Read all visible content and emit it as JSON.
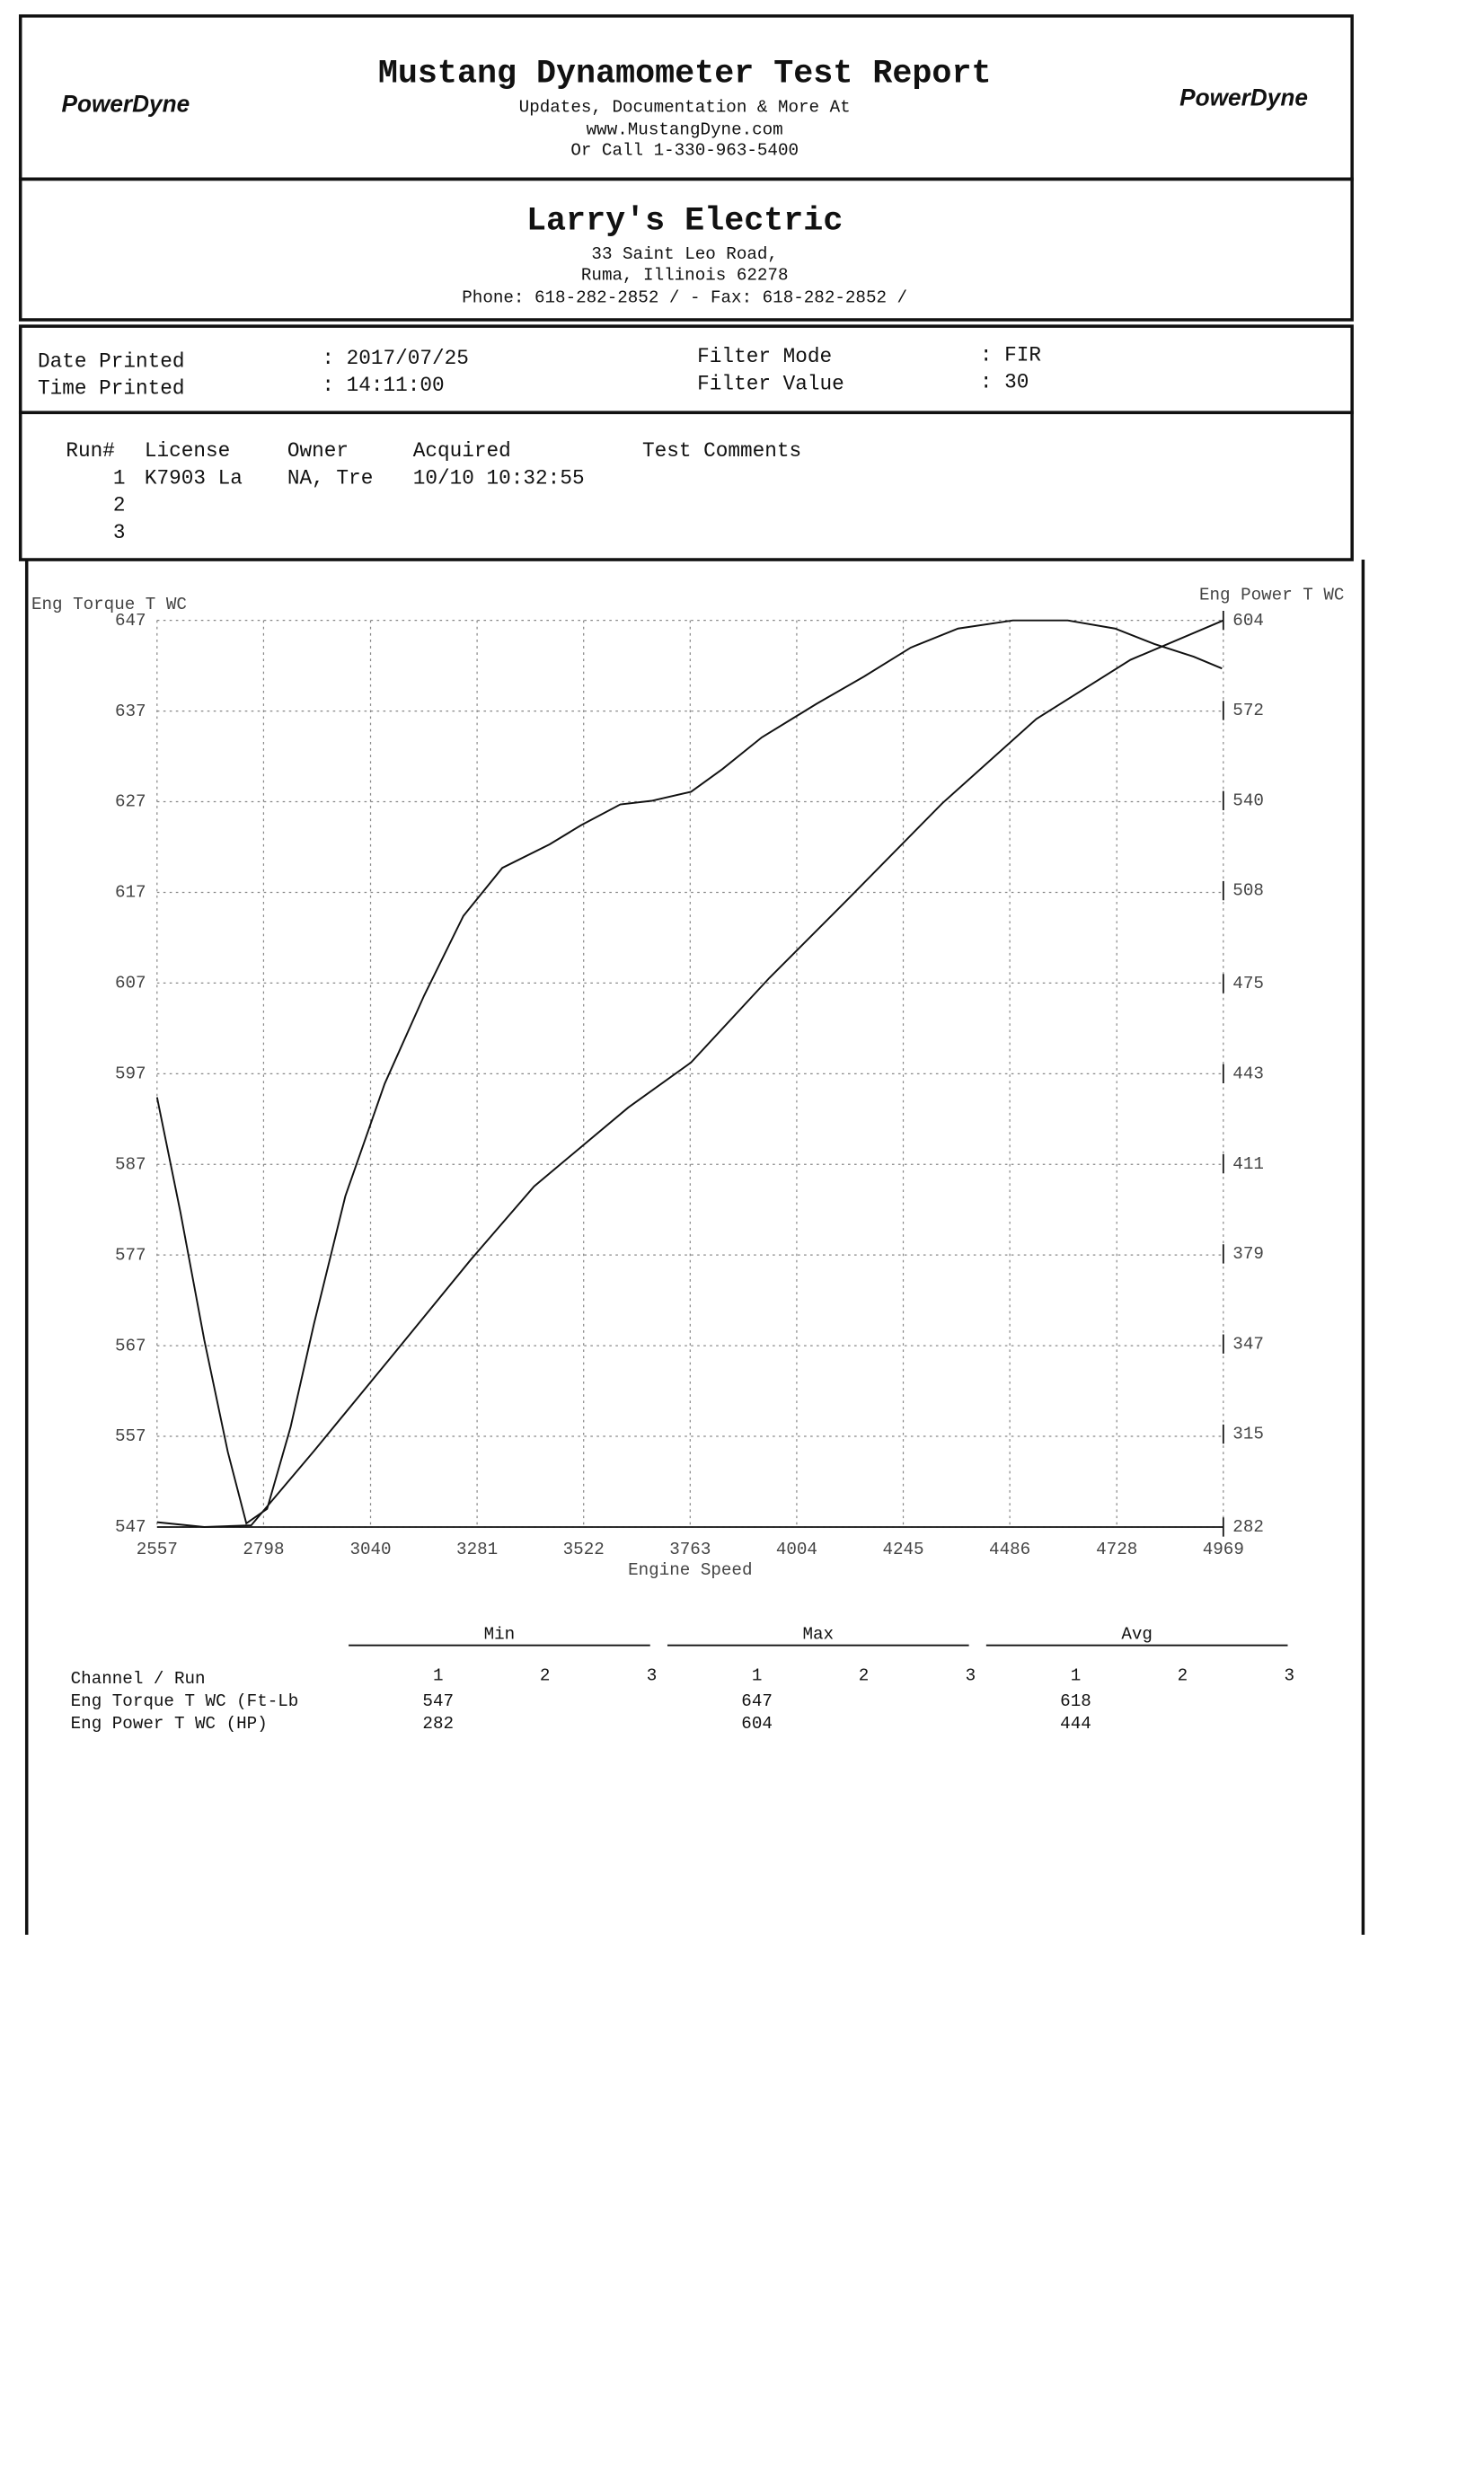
{
  "header": {
    "title": "Mustang Dynamometer Test Report",
    "lines": [
      "Updates, Documentation & More At",
      "www.MustangDyne.com",
      "Or Call 1-330-963-5400"
    ],
    "logo": "PowerDyne"
  },
  "shop": {
    "name": "Larry's Electric",
    "lines": [
      "33 Saint Leo Road,",
      "Ruma, Illinois  62278",
      "Phone: 618-282-2852 /  - Fax: 618-282-2852 /"
    ]
  },
  "print_info": {
    "date_label": "Date Printed",
    "date": ": 2017/07/25",
    "time_label": "Time Printed",
    "time": ": 14:11:00",
    "filter_mode_label": "Filter Mode",
    "filter_mode": ": FIR",
    "filter_value_label": "Filter Value",
    "filter_value": ": 30"
  },
  "runs": {
    "headers": [
      "Run#",
      "License",
      "Owner",
      "Acquired",
      "Test Comments"
    ],
    "rows": [
      [
        "1",
        "K7903 La",
        "NA, Tre",
        "10/10 10:32:55"
      ],
      [
        "2"
      ],
      [
        "3"
      ]
    ]
  },
  "chart_data": {
    "type": "line",
    "y_label": "Eng Torque T WC",
    "y2_label": "Eng Power T WC",
    "x_label": "Engine Speed",
    "xlim": [
      2557,
      4969
    ],
    "xticks": [
      2557,
      2798,
      3040,
      3281,
      3522,
      3763,
      4004,
      4245,
      4486,
      4728,
      4969
    ],
    "ylim": [
      547,
      647
    ],
    "yticks": [
      547,
      557,
      567,
      577,
      587,
      597,
      607,
      617,
      627,
      637,
      647
    ],
    "y2lim": [
      282,
      604
    ],
    "y2ticks": [
      282,
      315,
      347,
      379,
      411,
      443,
      475,
      508,
      540,
      572,
      604
    ],
    "grid": true,
    "series": [
      {
        "name": "Eng Torque T WC",
        "color": "#111111",
        "axis": "y",
        "x": [
          2557,
          2610,
          2664,
          2717,
          2759,
          2806,
          2859,
          2912,
          2983,
          3072,
          3161,
          3250,
          3338,
          3445,
          3516,
          3605,
          3676,
          3765,
          3836,
          3925,
          4049,
          4156,
          4262,
          4369,
          4493,
          4617,
          4724,
          4813,
          4902,
          4966
        ],
        "values": [
          594.4,
          581.7,
          567.6,
          555.3,
          547.4,
          549,
          558,
          569.4,
          583.5,
          595.9,
          605.6,
          614.4,
          619.7,
          622.3,
          624.4,
          626.7,
          627.1,
          628.1,
          630.6,
          634.1,
          637.8,
          640.8,
          644,
          646.1,
          647,
          647,
          646.1,
          644.4,
          643,
          641.7
        ]
      },
      {
        "name": "Eng Power T WC",
        "color": "#111111",
        "axis": "y2",
        "x": [
          2557,
          2664,
          2770,
          2912,
          3090,
          3267,
          3410,
          3623,
          3765,
          3942,
          4120,
          4333,
          4546,
          4759,
          4969
        ],
        "values": [
          283.7,
          282,
          282.6,
          309,
          343,
          377,
          403,
          431,
          447,
          477,
          505,
          539,
          569,
          590,
          604
        ]
      }
    ]
  },
  "summary": {
    "groups": [
      "Min",
      "Max",
      "Avg"
    ],
    "channel_header": "Channel / Run",
    "run_numbers": [
      "1",
      "2",
      "3"
    ],
    "rows": [
      {
        "label": "Eng Torque T WC (Ft-Lb",
        "min": "547",
        "max": "647",
        "avg": "618"
      },
      {
        "label": "Eng Power T WC (HP)",
        "min": "282",
        "max": "604",
        "avg": "444"
      }
    ]
  }
}
